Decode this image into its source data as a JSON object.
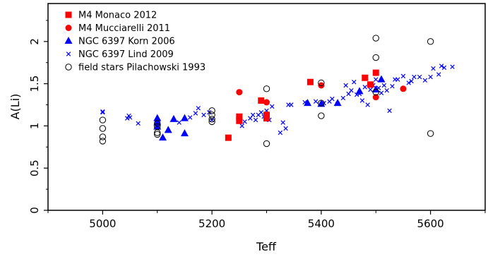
{
  "chart_data": {
    "type": "scatter",
    "title": "",
    "xlabel": "Teff",
    "ylabel": "A(Li)",
    "xlim": [
      4900,
      5700
    ],
    "ylim": [
      0,
      2.45
    ],
    "xticks": [
      "5000",
      "5200",
      "5400",
      "5600"
    ],
    "yticks": [
      "0",
      "0.5",
      "1",
      "1.5",
      "2"
    ],
    "grid": false,
    "legend_position": "top-left",
    "series": [
      {
        "name": "M4 Monaco 2012",
        "marker": "square",
        "color": "#ff0000",
        "points": [
          [
            5230,
            0.86
          ],
          [
            5250,
            1.06
          ],
          [
            5250,
            1.11
          ],
          [
            5290,
            1.3
          ],
          [
            5300,
            1.09
          ],
          [
            5300,
            1.13
          ],
          [
            5380,
            1.52
          ],
          [
            5480,
            1.57
          ],
          [
            5490,
            1.49
          ],
          [
            5500,
            1.63
          ]
        ]
      },
      {
        "name": "M4 Mucciarelli 2011",
        "marker": "circle-filled",
        "color": "#ff0000",
        "points": [
          [
            5250,
            1.4
          ],
          [
            5300,
            1.28
          ],
          [
            5400,
            1.48
          ],
          [
            5500,
            1.34
          ],
          [
            5550,
            1.44
          ]
        ]
      },
      {
        "name": "NGC 6397  Korn 2006",
        "marker": "triangle",
        "color": "#0000ff",
        "points": [
          [
            5100,
            1.09
          ],
          [
            5100,
            1.04
          ],
          [
            5100,
            0.99
          ],
          [
            5110,
            0.86
          ],
          [
            5120,
            0.95
          ],
          [
            5130,
            1.08
          ],
          [
            5150,
            1.09
          ],
          [
            5150,
            0.91
          ],
          [
            5375,
            1.27
          ],
          [
            5400,
            1.26
          ],
          [
            5430,
            1.27
          ],
          [
            5470,
            1.41
          ],
          [
            5500,
            1.43
          ],
          [
            5510,
            1.55
          ]
        ]
      },
      {
        "name": "NGC 6397  Lind 2009",
        "marker": "cross",
        "color": "#0000ff",
        "points": [
          [
            5000,
            1.17
          ],
          [
            5000,
            1.16
          ],
          [
            5045,
            1.09
          ],
          [
            5048,
            1.12
          ],
          [
            5050,
            1.1
          ],
          [
            5065,
            1.03
          ],
          [
            5140,
            1.04
          ],
          [
            5160,
            1.1
          ],
          [
            5170,
            1.15
          ],
          [
            5175,
            1.21
          ],
          [
            5185,
            1.13
          ],
          [
            5195,
            1.16
          ],
          [
            5200,
            1.07
          ],
          [
            5255,
            1.0
          ],
          [
            5260,
            1.05
          ],
          [
            5270,
            1.09
          ],
          [
            5275,
            1.13
          ],
          [
            5280,
            1.07
          ],
          [
            5285,
            1.13
          ],
          [
            5290,
            1.16
          ],
          [
            5295,
            1.11
          ],
          [
            5300,
            1.18
          ],
          [
            5305,
            1.07
          ],
          [
            5310,
            1.23
          ],
          [
            5325,
            0.92
          ],
          [
            5330,
            1.04
          ],
          [
            5335,
            0.97
          ],
          [
            5340,
            1.25
          ],
          [
            5345,
            1.25
          ],
          [
            5370,
            1.28
          ],
          [
            5390,
            1.29
          ],
          [
            5405,
            1.27
          ],
          [
            5415,
            1.29
          ],
          [
            5420,
            1.32
          ],
          [
            5430,
            1.26
          ],
          [
            5440,
            1.33
          ],
          [
            5445,
            1.48
          ],
          [
            5450,
            1.38
          ],
          [
            5455,
            1.42
          ],
          [
            5460,
            1.52
          ],
          [
            5465,
            1.37
          ],
          [
            5470,
            1.38
          ],
          [
            5475,
            1.3
          ],
          [
            5480,
            1.46
          ],
          [
            5485,
            1.25
          ],
          [
            5490,
            1.43
          ],
          [
            5495,
            1.48
          ],
          [
            5500,
            1.55
          ],
          [
            5505,
            1.45
          ],
          [
            5510,
            1.39
          ],
          [
            5515,
            1.48
          ],
          [
            5520,
            1.42
          ],
          [
            5525,
            1.18
          ],
          [
            5530,
            1.47
          ],
          [
            5535,
            1.55
          ],
          [
            5540,
            1.55
          ],
          [
            5550,
            1.59
          ],
          [
            5560,
            1.51
          ],
          [
            5565,
            1.53
          ],
          [
            5570,
            1.58
          ],
          [
            5580,
            1.58
          ],
          [
            5590,
            1.54
          ],
          [
            5600,
            1.58
          ],
          [
            5605,
            1.68
          ],
          [
            5615,
            1.61
          ],
          [
            5620,
            1.71
          ],
          [
            5625,
            1.69
          ],
          [
            5640,
            1.7
          ]
        ]
      },
      {
        "name": "field stars   Pilachowski 1993",
        "marker": "circle-open",
        "color": "#000000",
        "points": [
          [
            5000,
            1.07
          ],
          [
            5000,
            0.97
          ],
          [
            5000,
            0.87
          ],
          [
            5000,
            0.82
          ],
          [
            5100,
            1.03
          ],
          [
            5100,
            0.99
          ],
          [
            5100,
            0.92
          ],
          [
            5100,
            0.9
          ],
          [
            5200,
            1.18
          ],
          [
            5200,
            1.13
          ],
          [
            5200,
            1.08
          ],
          [
            5200,
            1.05
          ],
          [
            5300,
            1.44
          ],
          [
            5300,
            0.79
          ],
          [
            5400,
            1.51
          ],
          [
            5400,
            1.27
          ],
          [
            5400,
            1.12
          ],
          [
            5500,
            2.04
          ],
          [
            5500,
            1.81
          ],
          [
            5500,
            1.4
          ],
          [
            5600,
            2.0
          ],
          [
            5600,
            0.91
          ]
        ]
      }
    ]
  }
}
